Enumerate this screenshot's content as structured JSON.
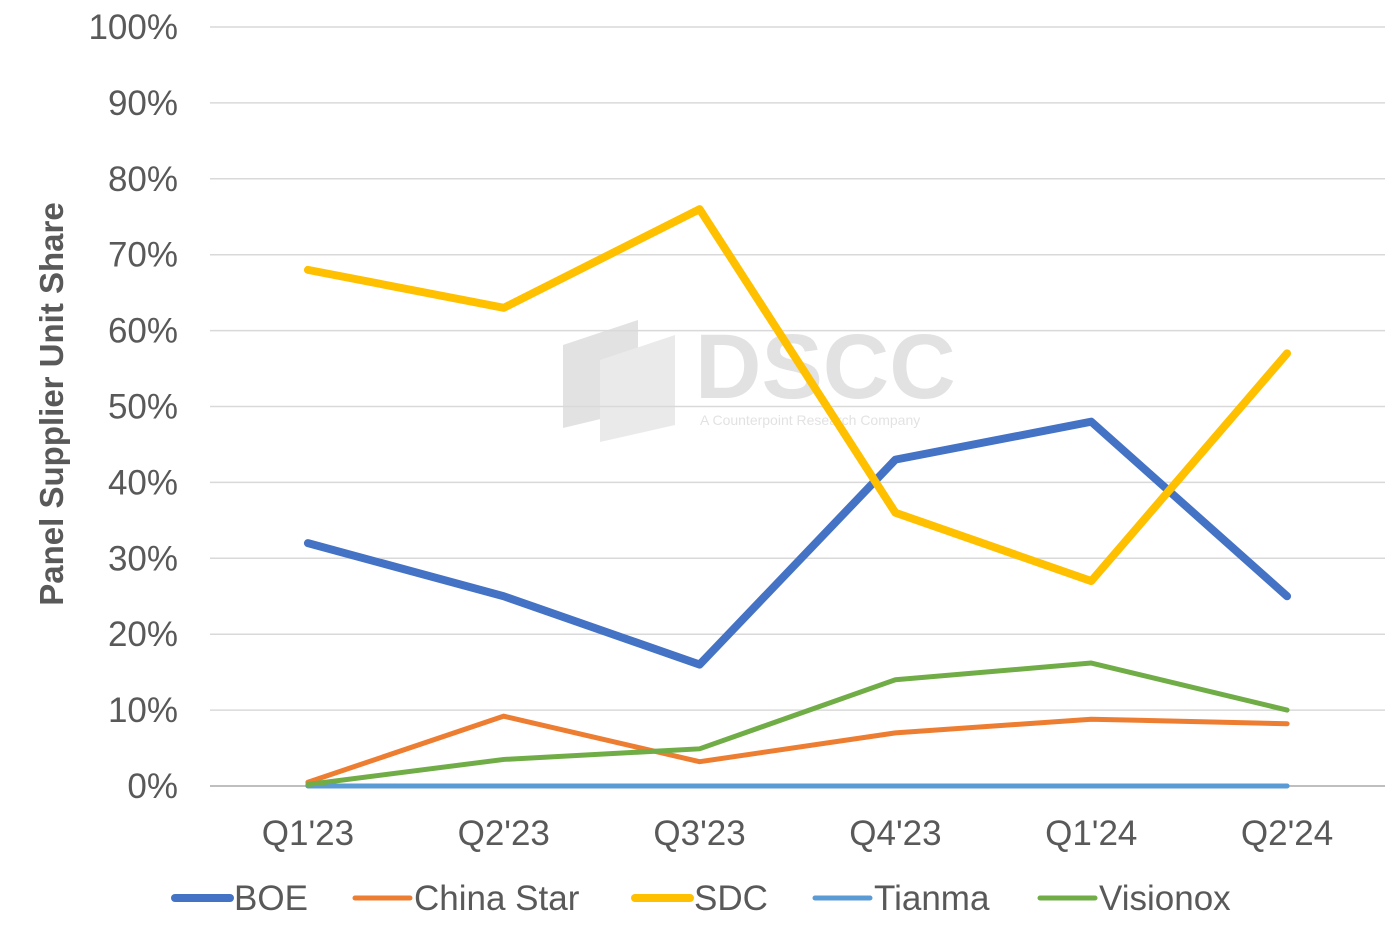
{
  "chart_data": {
    "type": "line",
    "title": "",
    "xlabel": "",
    "ylabel": "Panel Supplier Unit Share",
    "ylim": [
      0,
      100
    ],
    "yticks": [
      "0%",
      "10%",
      "20%",
      "30%",
      "40%",
      "50%",
      "60%",
      "70%",
      "80%",
      "90%",
      "100%"
    ],
    "categories": [
      "Q1'23",
      "Q2'23",
      "Q3'23",
      "Q4'23",
      "Q1'24",
      "Q2'24"
    ],
    "grid": "horizontal",
    "legend_position": "bottom",
    "series": [
      {
        "name": "BOE",
        "color": "#4472C4",
        "width": "thick",
        "values": [
          32,
          25,
          16,
          43,
          48,
          25
        ]
      },
      {
        "name": "China Star",
        "color": "#ED7D31",
        "width": "thin",
        "values": [
          0.5,
          9.2,
          3.2,
          7,
          8.8,
          8.2
        ]
      },
      {
        "name": "SDC",
        "color": "#FFC000",
        "width": "thick",
        "values": [
          68,
          63,
          76,
          36,
          27,
          57
        ]
      },
      {
        "name": "Tianma",
        "color": "#5B9BD5",
        "width": "thin",
        "values": [
          0,
          0,
          0,
          0,
          0,
          0
        ]
      },
      {
        "name": "Visionox",
        "color": "#70AD47",
        "width": "thin",
        "values": [
          0.2,
          3.5,
          4.9,
          14,
          16.2,
          10
        ]
      }
    ]
  },
  "watermark": {
    "brand": "DSCC",
    "tagline": "A Counterpoint Research Company"
  }
}
